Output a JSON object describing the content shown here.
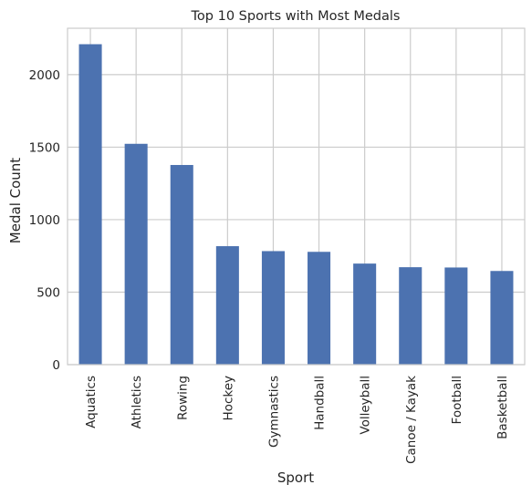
{
  "chart_data": {
    "type": "bar",
    "title": "Top 10 Sports with Most Medals",
    "xlabel": "Sport",
    "ylabel": "Medal Count",
    "categories": [
      "Aquatics",
      "Athletics",
      "Rowing",
      "Hockey",
      "Gymnastics",
      "Handball",
      "Volleyball",
      "Canoe / Kayak",
      "Football",
      "Basketball"
    ],
    "values": [
      2210,
      1523,
      1377,
      817,
      783,
      778,
      697,
      672,
      670,
      646
    ],
    "ylim": [
      0,
      2320
    ],
    "yticks": [
      0,
      500,
      1000,
      1500,
      2000
    ],
    "grid": true,
    "bar_color": "#4c72b0",
    "grid_color": "#cccccc",
    "axis_color": "#cccccc"
  }
}
